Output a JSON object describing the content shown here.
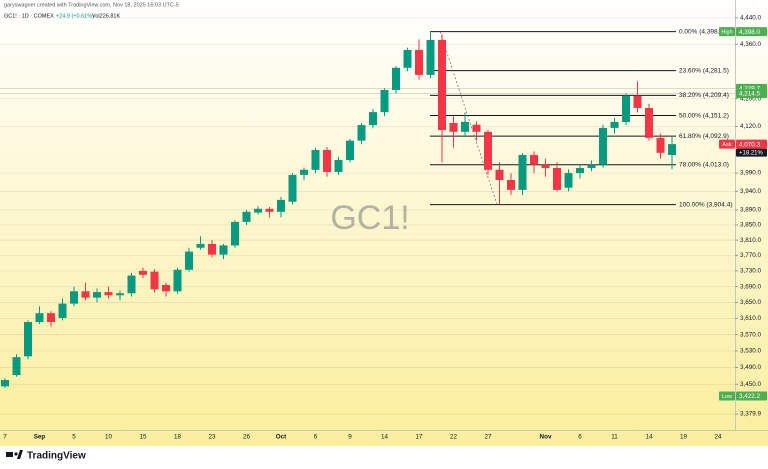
{
  "header": {
    "credit": "garyswagner created with TradingView.com, Nov 18, 2025 16:03 UTC-5",
    "symbol": "GC1! · 1D · COMEX",
    "change": "+24.9 (+0.61%)",
    "volume": "Vol226.81K"
  },
  "chart_data": {
    "type": "candlestick",
    "watermark": "GC1!",
    "categories": [
      "7",
      null,
      null,
      "Sep",
      null,
      null,
      "5",
      null,
      null,
      "10",
      null,
      null,
      "15",
      null,
      null,
      "18",
      null,
      null,
      "23",
      null,
      null,
      "26",
      null,
      null,
      "Oct",
      null,
      null,
      "6",
      null,
      null,
      "9",
      null,
      null,
      "14",
      null,
      null,
      "17",
      null,
      null,
      "22",
      null,
      null,
      "27",
      null,
      null,
      null,
      null,
      "Nov",
      null,
      null,
      "6",
      null,
      null,
      "11",
      null,
      null,
      "14",
      null,
      null,
      "19",
      null,
      null,
      "24"
    ],
    "open": [
      3445,
      3472,
      3517,
      3601,
      3623,
      3611,
      3647,
      3678,
      3662,
      3676,
      3668,
      3673,
      3730,
      3728,
      3694,
      3678,
      3733,
      3790,
      3800,
      3772,
      3796,
      3858,
      3883,
      3893,
      3885,
      3912,
      3985,
      3999,
      4054,
      3993,
      4026,
      4080,
      4124,
      4161,
      4225,
      4290,
      4343,
      4269,
      4373,
      4130,
      4105,
      4125,
      4105,
      3999,
      3971,
      3944,
      4040,
      4013,
      4004,
      3950,
      3990,
      4004,
      4013,
      4116,
      4133,
      4208,
      4173,
      4088,
      4040,
      null,
      null,
      null,
      null
    ],
    "high": [
      3465,
      3522,
      3605,
      3640,
      3628,
      3660,
      3690,
      3700,
      3685,
      3690,
      3680,
      3725,
      3738,
      3735,
      3700,
      3738,
      3790,
      3820,
      3810,
      3800,
      3862,
      3890,
      3900,
      3898,
      3925,
      3990,
      4005,
      4060,
      4062,
      4035,
      4085,
      4130,
      4170,
      4230,
      4295,
      4350,
      4375,
      4398,
      4390,
      4150,
      4160,
      4135,
      4110,
      4020,
      3990,
      4045,
      4050,
      4030,
      4020,
      4000,
      4015,
      4025,
      4125,
      4145,
      4215,
      4250,
      4185,
      4100,
      4090,
      null,
      null,
      null,
      null
    ],
    "low": [
      3441,
      3468,
      3510,
      3596,
      3590,
      3605,
      3640,
      3655,
      3650,
      3660,
      3655,
      3665,
      3712,
      3675,
      3665,
      3672,
      3728,
      3785,
      3765,
      3760,
      3790,
      3850,
      3878,
      3870,
      3870,
      3905,
      3970,
      3990,
      3980,
      3985,
      4020,
      4070,
      4115,
      4150,
      4215,
      4280,
      4255,
      4260,
      4020,
      4060,
      4095,
      4080,
      3985,
      3904.4,
      3930,
      3930,
      3990,
      3980,
      3940,
      3940,
      3975,
      3995,
      4005,
      4100,
      4124,
      4160,
      4080,
      4030,
      4000,
      null,
      null,
      null,
      null
    ],
    "close": [
      3460,
      3515,
      3601,
      3623,
      3601,
      3647,
      3678,
      3662,
      3676,
      3668,
      3673,
      3718,
      3720,
      3683,
      3678,
      3733,
      3780,
      3800,
      3772,
      3796,
      3858,
      3885,
      3893,
      3885,
      3917,
      3985,
      3999,
      4054,
      3993,
      4026,
      4080,
      4124,
      4161,
      4225,
      4290,
      4343,
      4269,
      4373,
      4110,
      4105,
      4133,
      4105,
      3999,
      3971,
      3944,
      4040,
      4013,
      4004,
      3944,
      3990,
      4004,
      4013,
      4116,
      4133,
      4208,
      4173,
      4088,
      4046,
      4070.3,
      null,
      null,
      null,
      null
    ],
    "up_color": "#089981",
    "down_color": "#f23645",
    "ylim": [
      3343,
      4495
    ],
    "log_scale": true,
    "grid": true,
    "yticks": [
      {
        "value": 4440,
        "label": "4,440.0"
      },
      {
        "value": 4360,
        "label": "4,360.0"
      },
      {
        "value": 4200,
        "label": "4,200.0"
      },
      {
        "value": 4120,
        "label": "4,120.0"
      },
      {
        "value": 3990,
        "label": "3,990.0"
      },
      {
        "value": 3940,
        "label": "3,940.0"
      },
      {
        "value": 3890,
        "label": "3,890.0"
      },
      {
        "value": 3850,
        "label": "3,850.0"
      },
      {
        "value": 3810,
        "label": "3,810.0"
      },
      {
        "value": 3770,
        "label": "3,770.0"
      },
      {
        "value": 3730,
        "label": "3,730.0"
      },
      {
        "value": 3690,
        "label": "3,690.0"
      },
      {
        "value": 3650,
        "label": "3,650.0"
      },
      {
        "value": 3610,
        "label": "3,610.0"
      },
      {
        "value": 3570,
        "label": "3,570.0"
      },
      {
        "value": 3530,
        "label": "3,530.0"
      },
      {
        "value": 3490,
        "label": "3,490.0"
      },
      {
        "value": 3450,
        "label": "3,450.0"
      },
      {
        "value": 3379.9,
        "label": "3,379.9"
      }
    ],
    "fib_levels": [
      {
        "value": 4398,
        "label": "0.00% (4,398.0)"
      },
      {
        "value": 4281.5,
        "label": "23.60% (4,281.5)"
      },
      {
        "value": 4209.4,
        "label": "38.20% (4,209.4)"
      },
      {
        "value": 4151.2,
        "label": "50.00% (4,151.2)"
      },
      {
        "value": 4092.9,
        "label": "61.80% (4,092.9)"
      },
      {
        "value": 4013,
        "label": "78.00% (4,013.0)"
      },
      {
        "value": 3904.4,
        "label": "100.00% (3,904.4)"
      }
    ],
    "fib_color": "#131722",
    "price_tags": [
      {
        "value": 4398,
        "label": "4,398.0",
        "tag": "High",
        "color": "#4caf50"
      },
      {
        "value": 4229.7,
        "label": "4,229.7",
        "color": "#4caf50"
      },
      {
        "value": 4214.5,
        "label": "4,214.5",
        "color": "#4caf50"
      },
      {
        "value": 4070.3,
        "label": "4,070.3",
        "tag": "Ask",
        "color": "#f23645"
      },
      {
        "value": 3422.2,
        "label": "3,422.2",
        "tag": "Low",
        "color": "#4caf50"
      }
    ],
    "change_tag": "+18.21%"
  },
  "footer": {
    "brand": "TradingView"
  }
}
